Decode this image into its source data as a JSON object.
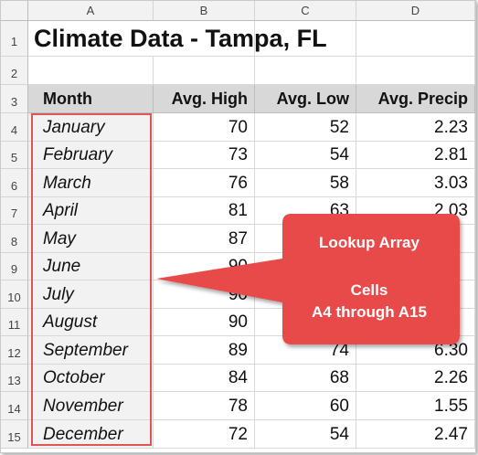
{
  "sheet": {
    "columns": [
      "A",
      "B",
      "C",
      "D"
    ],
    "rows": [
      "1",
      "2",
      "3",
      "4",
      "5",
      "6",
      "7",
      "8",
      "9",
      "10",
      "11",
      "12",
      "13",
      "14",
      "15"
    ],
    "title": "Climate Data - Tampa, FL",
    "headers": [
      "Month",
      "Avg. High",
      "Avg. Low",
      "Avg. Precip"
    ],
    "data": [
      {
        "month": "January",
        "high": "70",
        "low": "52",
        "precip": "2.23"
      },
      {
        "month": "February",
        "high": "73",
        "low": "54",
        "precip": "2.81"
      },
      {
        "month": "March",
        "high": "76",
        "low": "58",
        "precip": "3.03"
      },
      {
        "month": "April",
        "high": "81",
        "low": "63",
        "precip": "2.03"
      },
      {
        "month": "May",
        "high": "87",
        "low": "",
        "precip": ""
      },
      {
        "month": "June",
        "high": "90",
        "low": "",
        "precip": ""
      },
      {
        "month": "July",
        "high": "90",
        "low": "",
        "precip": ""
      },
      {
        "month": "August",
        "high": "90",
        "low": "",
        "precip": ""
      },
      {
        "month": "September",
        "high": "89",
        "low": "74",
        "precip": "6.30"
      },
      {
        "month": "October",
        "high": "84",
        "low": "68",
        "precip": "2.26"
      },
      {
        "month": "November",
        "high": "78",
        "low": "60",
        "precip": "1.55"
      },
      {
        "month": "December",
        "high": "72",
        "low": "54",
        "precip": "2.47"
      }
    ]
  },
  "callout": {
    "line1": "Lookup Array",
    "line2": "Cells",
    "line3": "A4 through A15",
    "color": "#e84848"
  }
}
